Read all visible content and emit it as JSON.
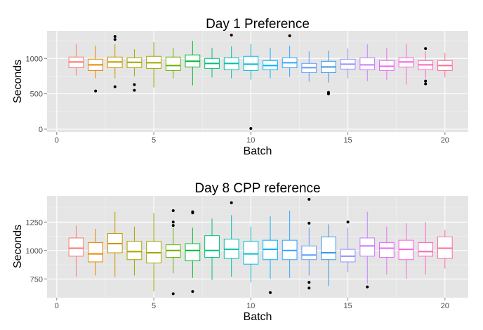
{
  "chart_data": [
    {
      "type": "boxplot",
      "title": "Day 1 Preference",
      "xlabel": "Batch",
      "ylabel": "Seconds",
      "xlim": [
        -0.5,
        21.2
      ],
      "ylim": [
        -40,
        1390
      ],
      "xticks": [
        0,
        5,
        10,
        15,
        20
      ],
      "yticks": [
        0,
        500,
        1000
      ],
      "grid": true,
      "boxes": [
        {
          "batch": 1,
          "lower": 760,
          "q1": 870,
          "median": 950,
          "q3": 1020,
          "upper": 1200,
          "outliers": [],
          "color": "#F8766D"
        },
        {
          "batch": 2,
          "lower": 720,
          "q1": 830,
          "median": 910,
          "q3": 990,
          "upper": 1180,
          "outliers": [
            540
          ],
          "color": "#E58700"
        },
        {
          "batch": 3,
          "lower": 720,
          "q1": 870,
          "median": 950,
          "q3": 1020,
          "upper": 1200,
          "outliers": [
            600,
            1270,
            1310
          ],
          "color": "#C99800"
        },
        {
          "batch": 4,
          "lower": 750,
          "q1": 870,
          "median": 945,
          "q3": 1010,
          "upper": 1130,
          "outliers": [
            550,
            630
          ],
          "color": "#A3A500"
        },
        {
          "batch": 5,
          "lower": 590,
          "q1": 860,
          "median": 940,
          "q3": 1030,
          "upper": 1230,
          "outliers": [],
          "color": "#A3A500"
        },
        {
          "batch": 6,
          "lower": 720,
          "q1": 830,
          "median": 900,
          "q3": 1020,
          "upper": 1150,
          "outliers": [],
          "color": "#6BB100"
        },
        {
          "batch": 7,
          "lower": 620,
          "q1": 880,
          "median": 960,
          "q3": 1050,
          "upper": 1250,
          "outliers": [],
          "color": "#00BA38"
        },
        {
          "batch": 8,
          "lower": 730,
          "q1": 860,
          "median": 930,
          "q3": 1000,
          "upper": 1150,
          "outliers": [],
          "color": "#00BF7D"
        },
        {
          "batch": 9,
          "lower": 720,
          "q1": 840,
          "median": 930,
          "q3": 1010,
          "upper": 1170,
          "outliers": [
            1330
          ],
          "color": "#00C0AF"
        },
        {
          "batch": 10,
          "lower": 700,
          "q1": 830,
          "median": 920,
          "q3": 1030,
          "upper": 1200,
          "outliers": [
            10
          ],
          "color": "#00BCD8"
        },
        {
          "batch": 11,
          "lower": 720,
          "q1": 840,
          "median": 900,
          "q3": 970,
          "upper": 1150,
          "outliers": [],
          "color": "#00B0F6"
        },
        {
          "batch": 12,
          "lower": 740,
          "q1": 870,
          "median": 940,
          "q3": 1010,
          "upper": 1180,
          "outliers": [
            1320
          ],
          "color": "#35A2FF"
        },
        {
          "batch": 13,
          "lower": 670,
          "q1": 800,
          "median": 870,
          "q3": 930,
          "upper": 1100,
          "outliers": [],
          "color": "#619CFF"
        },
        {
          "batch": 14,
          "lower": 660,
          "q1": 800,
          "median": 880,
          "q3": 960,
          "upper": 1110,
          "outliers": [
            500,
            520
          ],
          "color": "#3896E8"
        },
        {
          "batch": 15,
          "lower": 720,
          "q1": 850,
          "median": 920,
          "q3": 990,
          "upper": 1140,
          "outliers": [],
          "color": "#9590FF"
        },
        {
          "batch": 16,
          "lower": 680,
          "q1": 840,
          "median": 910,
          "q3": 1010,
          "upper": 1200,
          "outliers": [],
          "color": "#C77CFF"
        },
        {
          "batch": 17,
          "lower": 700,
          "q1": 830,
          "median": 890,
          "q3": 970,
          "upper": 1150,
          "outliers": [],
          "color": "#E76BF3"
        },
        {
          "batch": 18,
          "lower": 630,
          "q1": 880,
          "median": 950,
          "q3": 1010,
          "upper": 1200,
          "outliers": [],
          "color": "#FA62DB"
        },
        {
          "batch": 19,
          "lower": 720,
          "q1": 840,
          "median": 910,
          "q3": 970,
          "upper": 1100,
          "outliers": [
            640,
            680,
            1140
          ],
          "color": "#FF62BC"
        },
        {
          "batch": 20,
          "lower": 730,
          "q1": 830,
          "median": 900,
          "q3": 970,
          "upper": 1080,
          "outliers": [],
          "color": "#FF6C91"
        }
      ]
    },
    {
      "type": "boxplot",
      "title": "Day 8  CPP reference",
      "xlabel": "Batch",
      "ylabel": "Seconds",
      "xlim": [
        -0.5,
        21.2
      ],
      "ylim": [
        585,
        1480
      ],
      "xticks": [
        0,
        5,
        10,
        15,
        20
      ],
      "yticks": [
        750,
        1000,
        1250
      ],
      "grid": true,
      "boxes": [
        {
          "batch": 1,
          "lower": 770,
          "q1": 950,
          "median": 1020,
          "q3": 1110,
          "upper": 1220,
          "outliers": [],
          "color": "#F8766D"
        },
        {
          "batch": 2,
          "lower": 780,
          "q1": 900,
          "median": 970,
          "q3": 1070,
          "upper": 1190,
          "outliers": [],
          "color": "#E58700"
        },
        {
          "batch": 3,
          "lower": 770,
          "q1": 980,
          "median": 1060,
          "q3": 1150,
          "upper": 1340,
          "outliers": [],
          "color": "#C99800"
        },
        {
          "batch": 4,
          "lower": 780,
          "q1": 920,
          "median": 990,
          "q3": 1080,
          "upper": 1210,
          "outliers": [],
          "color": "#A3A500"
        },
        {
          "batch": 5,
          "lower": 640,
          "q1": 890,
          "median": 980,
          "q3": 1080,
          "upper": 1330,
          "outliers": [],
          "color": "#A3A500"
        },
        {
          "batch": 6,
          "lower": 800,
          "q1": 940,
          "median": 1000,
          "q3": 1050,
          "upper": 1200,
          "outliers": [
            620,
            1220,
            1250,
            1350
          ],
          "color": "#6BB100"
        },
        {
          "batch": 7,
          "lower": 760,
          "q1": 910,
          "median": 1000,
          "q3": 1060,
          "upper": 1200,
          "outliers": [
            640,
            1330,
            1340
          ],
          "color": "#00BA38"
        },
        {
          "batch": 8,
          "lower": 740,
          "q1": 940,
          "median": 1000,
          "q3": 1130,
          "upper": 1280,
          "outliers": [],
          "color": "#00BF7D"
        },
        {
          "batch": 9,
          "lower": 770,
          "q1": 930,
          "median": 1010,
          "q3": 1100,
          "upper": 1310,
          "outliers": [
            1420
          ],
          "color": "#00C0AF"
        },
        {
          "batch": 10,
          "lower": 720,
          "q1": 880,
          "median": 970,
          "q3": 1080,
          "upper": 1210,
          "outliers": [],
          "color": "#00BCD8"
        },
        {
          "batch": 11,
          "lower": 750,
          "q1": 920,
          "median": 1010,
          "q3": 1090,
          "upper": 1300,
          "outliers": [
            630
          ],
          "color": "#00B0F6"
        },
        {
          "batch": 12,
          "lower": 760,
          "q1": 920,
          "median": 1000,
          "q3": 1090,
          "upper": 1350,
          "outliers": [],
          "color": "#35A2FF"
        },
        {
          "batch": 13,
          "lower": 780,
          "q1": 920,
          "median": 960,
          "q3": 1040,
          "upper": 1200,
          "outliers": [
            670,
            720,
            1240,
            1450
          ],
          "color": "#619CFF"
        },
        {
          "batch": 14,
          "lower": 690,
          "q1": 920,
          "median": 980,
          "q3": 1120,
          "upper": 1230,
          "outliers": [],
          "color": "#3896E8"
        },
        {
          "batch": 15,
          "lower": 810,
          "q1": 900,
          "median": 950,
          "q3": 1010,
          "upper": 1200,
          "outliers": [
            1250
          ],
          "color": "#9590FF"
        },
        {
          "batch": 16,
          "lower": 710,
          "q1": 950,
          "median": 1040,
          "q3": 1110,
          "upper": 1340,
          "outliers": [
            680
          ],
          "color": "#C77CFF"
        },
        {
          "batch": 17,
          "lower": 790,
          "q1": 940,
          "median": 1020,
          "q3": 1070,
          "upper": 1210,
          "outliers": [],
          "color": "#E76BF3"
        },
        {
          "batch": 18,
          "lower": 750,
          "q1": 920,
          "median": 1010,
          "q3": 1090,
          "upper": 1240,
          "outliers": [],
          "color": "#FA62DB"
        },
        {
          "batch": 19,
          "lower": 790,
          "q1": 950,
          "median": 990,
          "q3": 1070,
          "upper": 1250,
          "outliers": [],
          "color": "#FF62BC"
        },
        {
          "batch": 20,
          "lower": 840,
          "q1": 930,
          "median": 1020,
          "q3": 1120,
          "upper": 1180,
          "outliers": [],
          "color": "#FF6C91"
        }
      ]
    }
  ]
}
